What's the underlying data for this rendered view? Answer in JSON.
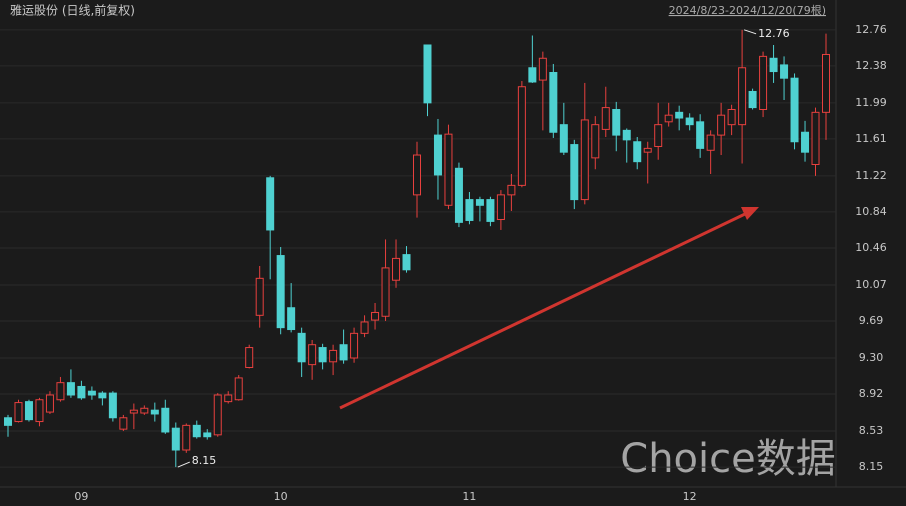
{
  "chart_data": {
    "type": "candlestick",
    "title": "雅运股份 (日线,前复权)",
    "range_label": "2024/8/23-2024/12/20(79根)",
    "watermark": "Choice数据",
    "up_color": "#e8403e",
    "down_color": "#4fd1d1",
    "grid": true,
    "ylim": [
      7.94,
      12.99
    ],
    "yticks": [
      8.15,
      8.53,
      8.92,
      {
        "value": 9.3,
        "label": "9.30"
      },
      9.69,
      10.07,
      10.46,
      10.84,
      11.22,
      11.61,
      11.99,
      12.38,
      12.76
    ],
    "categories": [
      null,
      null,
      null,
      null,
      null,
      null,
      null,
      "09",
      null,
      null,
      null,
      null,
      null,
      null,
      null,
      null,
      null,
      null,
      null,
      null,
      null,
      null,
      null,
      null,
      null,
      null,
      "10",
      null,
      null,
      null,
      null,
      null,
      null,
      null,
      null,
      null,
      null,
      null,
      null,
      null,
      null,
      null,
      null,
      null,
      "11",
      null,
      null,
      null,
      null,
      null,
      null,
      null,
      null,
      null,
      null,
      null,
      null,
      null,
      null,
      null,
      null,
      null,
      null,
      null,
      null,
      "12",
      null,
      null,
      null,
      null,
      null,
      null,
      null,
      null,
      null,
      null,
      null,
      null,
      null
    ],
    "open": [
      8.67,
      8.63,
      8.84,
      8.63,
      8.73,
      8.86,
      9.04,
      9.0,
      8.95,
      8.93,
      8.93,
      8.55,
      8.72,
      8.72,
      8.75,
      8.77,
      8.56,
      8.33,
      8.59,
      8.51,
      8.49,
      8.84,
      8.86,
      9.2,
      9.75,
      11.2,
      10.38,
      9.83,
      9.56,
      9.23,
      9.41,
      9.26,
      9.44,
      9.3,
      9.56,
      9.7,
      9.74,
      10.12,
      10.39,
      11.02,
      12.6,
      11.65,
      10.91,
      11.3,
      10.97,
      10.97,
      10.97,
      10.76,
      11.02,
      11.12,
      12.36,
      12.23,
      12.31,
      11.76,
      11.55,
      10.97,
      11.41,
      11.71,
      11.92,
      11.7,
      11.58,
      11.47,
      11.53,
      11.79,
      11.89,
      11.83,
      11.79,
      11.49,
      11.65,
      11.76,
      11.76,
      12.11,
      11.92,
      12.46,
      12.39,
      12.25,
      11.68,
      11.34,
      11.89
    ],
    "high": [
      8.7,
      8.86,
      8.86,
      8.88,
      8.95,
      9.1,
      9.18,
      9.06,
      9.0,
      8.95,
      8.95,
      8.7,
      8.82,
      8.8,
      8.83,
      8.86,
      8.62,
      8.61,
      8.64,
      8.55,
      8.93,
      8.95,
      9.12,
      9.44,
      10.27,
      11.22,
      10.47,
      10.09,
      9.62,
      9.49,
      9.45,
      9.44,
      9.6,
      9.62,
      9.75,
      9.88,
      10.55,
      10.55,
      10.48,
      11.58,
      12.6,
      11.82,
      11.76,
      11.36,
      11.05,
      11.0,
      11.0,
      11.07,
      11.24,
      12.22,
      12.7,
      12.53,
      12.4,
      11.99,
      11.6,
      12.2,
      11.85,
      12.16,
      12.0,
      11.72,
      11.63,
      11.58,
      11.99,
      11.99,
      11.96,
      11.88,
      11.87,
      11.7,
      11.99,
      11.97,
      12.76,
      12.14,
      12.53,
      12.6,
      12.48,
      12.3,
      11.8,
      11.94,
      12.72
    ],
    "low": [
      8.47,
      8.62,
      8.63,
      8.58,
      8.71,
      8.84,
      8.88,
      8.86,
      8.86,
      8.8,
      8.63,
      8.53,
      8.55,
      8.7,
      8.63,
      8.5,
      8.15,
      8.3,
      8.45,
      8.44,
      8.47,
      8.82,
      8.85,
      9.19,
      9.62,
      10.13,
      9.55,
      9.57,
      9.1,
      9.07,
      9.18,
      9.12,
      9.24,
      9.25,
      9.52,
      9.6,
      9.69,
      10.04,
      10.2,
      10.78,
      11.85,
      10.97,
      10.87,
      10.68,
      10.71,
      10.74,
      10.69,
      10.65,
      10.85,
      11.1,
      12.2,
      11.7,
      11.62,
      11.44,
      10.87,
      10.92,
      11.29,
      11.63,
      11.48,
      11.36,
      11.29,
      11.14,
      11.39,
      11.74,
      11.7,
      11.7,
      11.41,
      11.24,
      11.44,
      11.65,
      11.35,
      11.92,
      11.84,
      12.2,
      12.02,
      11.5,
      11.37,
      11.22,
      11.6
    ],
    "close": [
      8.59,
      8.83,
      8.65,
      8.86,
      8.91,
      9.04,
      8.91,
      8.88,
      8.91,
      8.88,
      8.67,
      8.67,
      8.75,
      8.77,
      8.71,
      8.52,
      8.33,
      8.59,
      8.47,
      8.47,
      8.91,
      8.91,
      9.09,
      9.41,
      10.14,
      10.65,
      9.62,
      9.6,
      9.26,
      9.44,
      9.26,
      9.38,
      9.28,
      9.56,
      9.68,
      9.78,
      10.25,
      10.35,
      10.23,
      11.44,
      11.99,
      11.23,
      11.66,
      10.73,
      10.75,
      10.91,
      10.74,
      11.02,
      11.12,
      12.16,
      12.21,
      12.46,
      11.68,
      11.47,
      10.97,
      11.81,
      11.76,
      11.94,
      11.65,
      11.6,
      11.37,
      11.51,
      11.76,
      11.86,
      11.83,
      11.76,
      11.51,
      11.65,
      11.86,
      11.92,
      12.36,
      11.94,
      12.48,
      12.32,
      12.25,
      11.58,
      11.47,
      11.89,
      12.5
    ],
    "high_marker": 12.76,
    "low_marker": 8.15
  }
}
